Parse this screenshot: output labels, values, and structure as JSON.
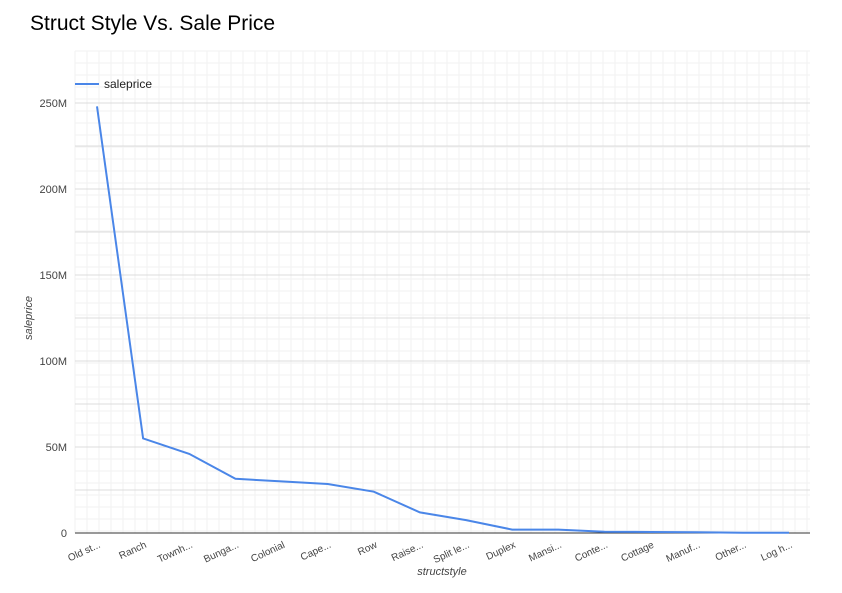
{
  "chart_data": {
    "type": "line",
    "title": "Struct Style Vs. Sale Price",
    "xlabel": "structstyle",
    "ylabel": "saleprice",
    "categories": [
      "Old st...",
      "Ranch",
      "Townh...",
      "Bunga...",
      "Colonial",
      "Cape...",
      "Row",
      "Raise...",
      "Split le...",
      "Duplex",
      "Mansi...",
      "Conte...",
      "Cottage",
      "Manuf...",
      "Other...",
      "Log h..."
    ],
    "series": [
      {
        "name": "saleprice",
        "color": "#4a86e8",
        "values": [
          248000000,
          55000000,
          46000000,
          31500000,
          30000000,
          28500000,
          24000000,
          12000000,
          7500000,
          2000000,
          2000000,
          700000,
          600000,
          400000,
          200000,
          100000
        ]
      }
    ],
    "ylim": [
      0,
      250000000
    ],
    "yticks": [
      0,
      50000000,
      100000000,
      150000000,
      200000000,
      250000000
    ],
    "ytick_labels": [
      "0",
      "50M",
      "100M",
      "150M",
      "200M",
      "250M"
    ],
    "grid": true,
    "legend": "top-left"
  }
}
